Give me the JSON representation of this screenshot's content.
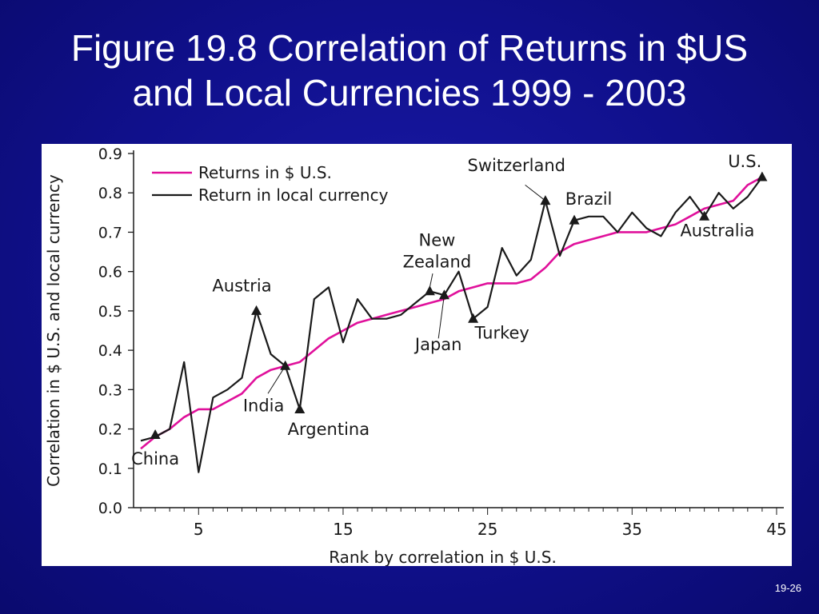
{
  "slide": {
    "title_line1": "Figure 19.8 Correlation of Returns in $US",
    "title_line2": "and Local Currencies 1999 - 2003",
    "page_number": "19-26"
  },
  "chart_data": {
    "type": "line",
    "xlabel": "Rank by correlation in $ U.S.",
    "ylabel": "Correlation in $ U.S. and local currency",
    "xlim": [
      0.5,
      45.5
    ],
    "ylim": [
      0,
      0.9
    ],
    "x_ticks": [
      5,
      15,
      25,
      35,
      45
    ],
    "x_tick_labels": [
      "5",
      "15",
      "25",
      "35",
      "45"
    ],
    "y_ticks": [
      0,
      0.1,
      0.2,
      0.3,
      0.4,
      0.5,
      0.6,
      0.7,
      0.8,
      0.9
    ],
    "y_tick_labels": [
      "0.0",
      "0.1",
      "0.2",
      "0.3",
      "0.4",
      "0.5",
      "0.6",
      "0.7",
      "0.8",
      "0.9"
    ],
    "grid": false,
    "legend": "top-left",
    "series": [
      {
        "name": "Returns in $ U.S.",
        "color": "#e0109b",
        "x": [
          1,
          2,
          3,
          4,
          5,
          6,
          7,
          8,
          9,
          10,
          11,
          12,
          13,
          14,
          15,
          16,
          17,
          18,
          19,
          20,
          21,
          22,
          23,
          24,
          25,
          26,
          27,
          28,
          29,
          30,
          31,
          32,
          33,
          34,
          35,
          36,
          37,
          38,
          39,
          40,
          41,
          42,
          43,
          44
        ],
        "y": [
          0.15,
          0.18,
          0.2,
          0.23,
          0.25,
          0.25,
          0.27,
          0.29,
          0.33,
          0.35,
          0.36,
          0.37,
          0.4,
          0.43,
          0.45,
          0.47,
          0.48,
          0.49,
          0.5,
          0.51,
          0.52,
          0.53,
          0.55,
          0.56,
          0.57,
          0.57,
          0.57,
          0.58,
          0.61,
          0.65,
          0.67,
          0.68,
          0.69,
          0.7,
          0.7,
          0.7,
          0.71,
          0.72,
          0.74,
          0.76,
          0.77,
          0.78,
          0.82,
          0.84
        ]
      },
      {
        "name": "Return in local currency",
        "color": "#1a1a1a",
        "x": [
          1,
          2,
          3,
          4,
          5,
          6,
          7,
          8,
          9,
          10,
          11,
          12,
          13,
          14,
          15,
          16,
          17,
          18,
          19,
          20,
          21,
          22,
          23,
          24,
          25,
          26,
          27,
          28,
          29,
          30,
          31,
          32,
          33,
          34,
          35,
          36,
          37,
          38,
          39,
          40,
          41,
          42,
          43,
          44
        ],
        "y": [
          0.17,
          0.18,
          0.2,
          0.37,
          0.09,
          0.28,
          0.3,
          0.33,
          0.5,
          0.39,
          0.36,
          0.25,
          0.53,
          0.56,
          0.42,
          0.53,
          0.48,
          0.48,
          0.49,
          0.52,
          0.55,
          0.54,
          0.6,
          0.48,
          0.51,
          0.66,
          0.59,
          0.63,
          0.78,
          0.64,
          0.73,
          0.74,
          0.74,
          0.7,
          0.75,
          0.71,
          0.69,
          0.75,
          0.79,
          0.74,
          0.8,
          0.76,
          0.79,
          0.84
        ]
      }
    ],
    "markers": [
      {
        "label": "China",
        "x": 2,
        "y": 0.185
      },
      {
        "label": "Austria",
        "x": 9,
        "y": 0.5
      },
      {
        "label": "India",
        "x": 11,
        "y": 0.36
      },
      {
        "label": "Argentina",
        "x": 12,
        "y": 0.25
      },
      {
        "label": "New\nZealand",
        "x": 21,
        "y": 0.55
      },
      {
        "label": "Japan",
        "x": 22,
        "y": 0.54
      },
      {
        "label": "Turkey",
        "x": 24,
        "y": 0.48
      },
      {
        "label": "Switzerland",
        "x": 29,
        "y": 0.78
      },
      {
        "label": "Brazil",
        "x": 31,
        "y": 0.73
      },
      {
        "label": "Australia",
        "x": 40,
        "y": 0.74
      },
      {
        "label": "U.S.",
        "x": 44,
        "y": 0.84
      }
    ]
  }
}
